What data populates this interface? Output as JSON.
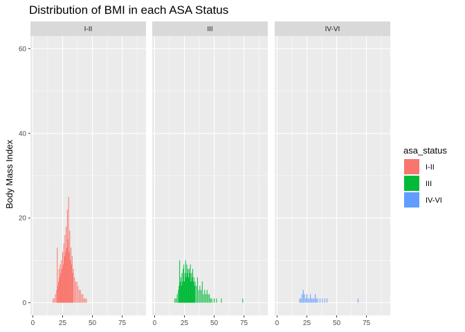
{
  "chart_data": {
    "type": "bar",
    "title": "Distribution of BMI in each ASA Status",
    "xlabel": "",
    "ylabel": "Body Mass Index",
    "xlim": [
      -2,
      95
    ],
    "ylim": [
      -3,
      63
    ],
    "x_ticks": [
      0,
      25,
      50,
      75
    ],
    "y_ticks": [
      0,
      20,
      40,
      60
    ],
    "grid": true,
    "facets": [
      "I-II",
      "III",
      "IV-VI"
    ],
    "legend": {
      "title": "asa_status",
      "position": "right",
      "entries": [
        {
          "label": "I-II",
          "color": "#F8766D"
        },
        {
          "label": "III",
          "color": "#00BA38"
        },
        {
          "label": "IV-VI",
          "color": "#619CFF"
        }
      ]
    },
    "series": [
      {
        "name": "I-II",
        "color": "#F8766D",
        "x": [
          17,
          18,
          19,
          20,
          20.5,
          21,
          21.5,
          22,
          22.5,
          23,
          23.5,
          24,
          24.5,
          25,
          25.5,
          26,
          26.5,
          27,
          27.5,
          28,
          28.5,
          29,
          29.5,
          30,
          30.5,
          31,
          31.5,
          32,
          32.5,
          33,
          33.5,
          34,
          35,
          36,
          37,
          38,
          39,
          40,
          41,
          42,
          43,
          44,
          45
        ],
        "values": [
          1,
          1,
          2,
          3,
          13,
          4,
          5,
          8,
          6,
          9,
          7,
          10,
          8,
          12,
          9,
          14,
          11,
          16,
          12,
          18,
          13,
          22,
          15,
          25,
          12,
          17,
          10,
          13,
          9,
          11,
          7,
          8,
          6,
          5,
          5,
          4,
          3,
          3,
          2,
          2,
          1,
          1,
          1
        ]
      },
      {
        "name": "III",
        "color": "#00BA38",
        "x": [
          17,
          18,
          19,
          20,
          20.5,
          21,
          21.5,
          22,
          22.5,
          23,
          23.5,
          24,
          24.5,
          25,
          25.5,
          26,
          26.5,
          27,
          27.5,
          28,
          28.5,
          29,
          29.5,
          30,
          30.5,
          31,
          31.5,
          32,
          32.5,
          33,
          33.5,
          34,
          35,
          36,
          37,
          38,
          39,
          40,
          41,
          42,
          43,
          44,
          45,
          46,
          47,
          48,
          50,
          52,
          56,
          74
        ],
        "values": [
          1,
          1,
          2,
          3,
          4,
          10,
          5,
          6,
          4,
          7,
          5,
          8,
          9,
          5,
          7,
          10,
          6,
          9,
          7,
          8,
          6,
          8,
          7,
          9,
          5,
          7,
          6,
          8,
          5,
          6,
          4,
          5,
          4,
          6,
          3,
          4,
          3,
          5,
          2,
          3,
          2,
          3,
          2,
          2,
          1,
          1,
          1,
          1,
          1,
          1
        ]
      },
      {
        "name": "IV-VI",
        "color": "#619CFF",
        "x": [
          19,
          20,
          21,
          22,
          23,
          24,
          25,
          26,
          27,
          28,
          29,
          30,
          31,
          32,
          33,
          34,
          36,
          38,
          40,
          42,
          68
        ],
        "values": [
          1,
          1,
          2,
          3,
          2,
          1,
          2,
          1,
          1,
          2,
          1,
          1,
          1,
          2,
          1,
          1,
          1,
          1,
          1,
          1,
          1
        ]
      }
    ]
  }
}
